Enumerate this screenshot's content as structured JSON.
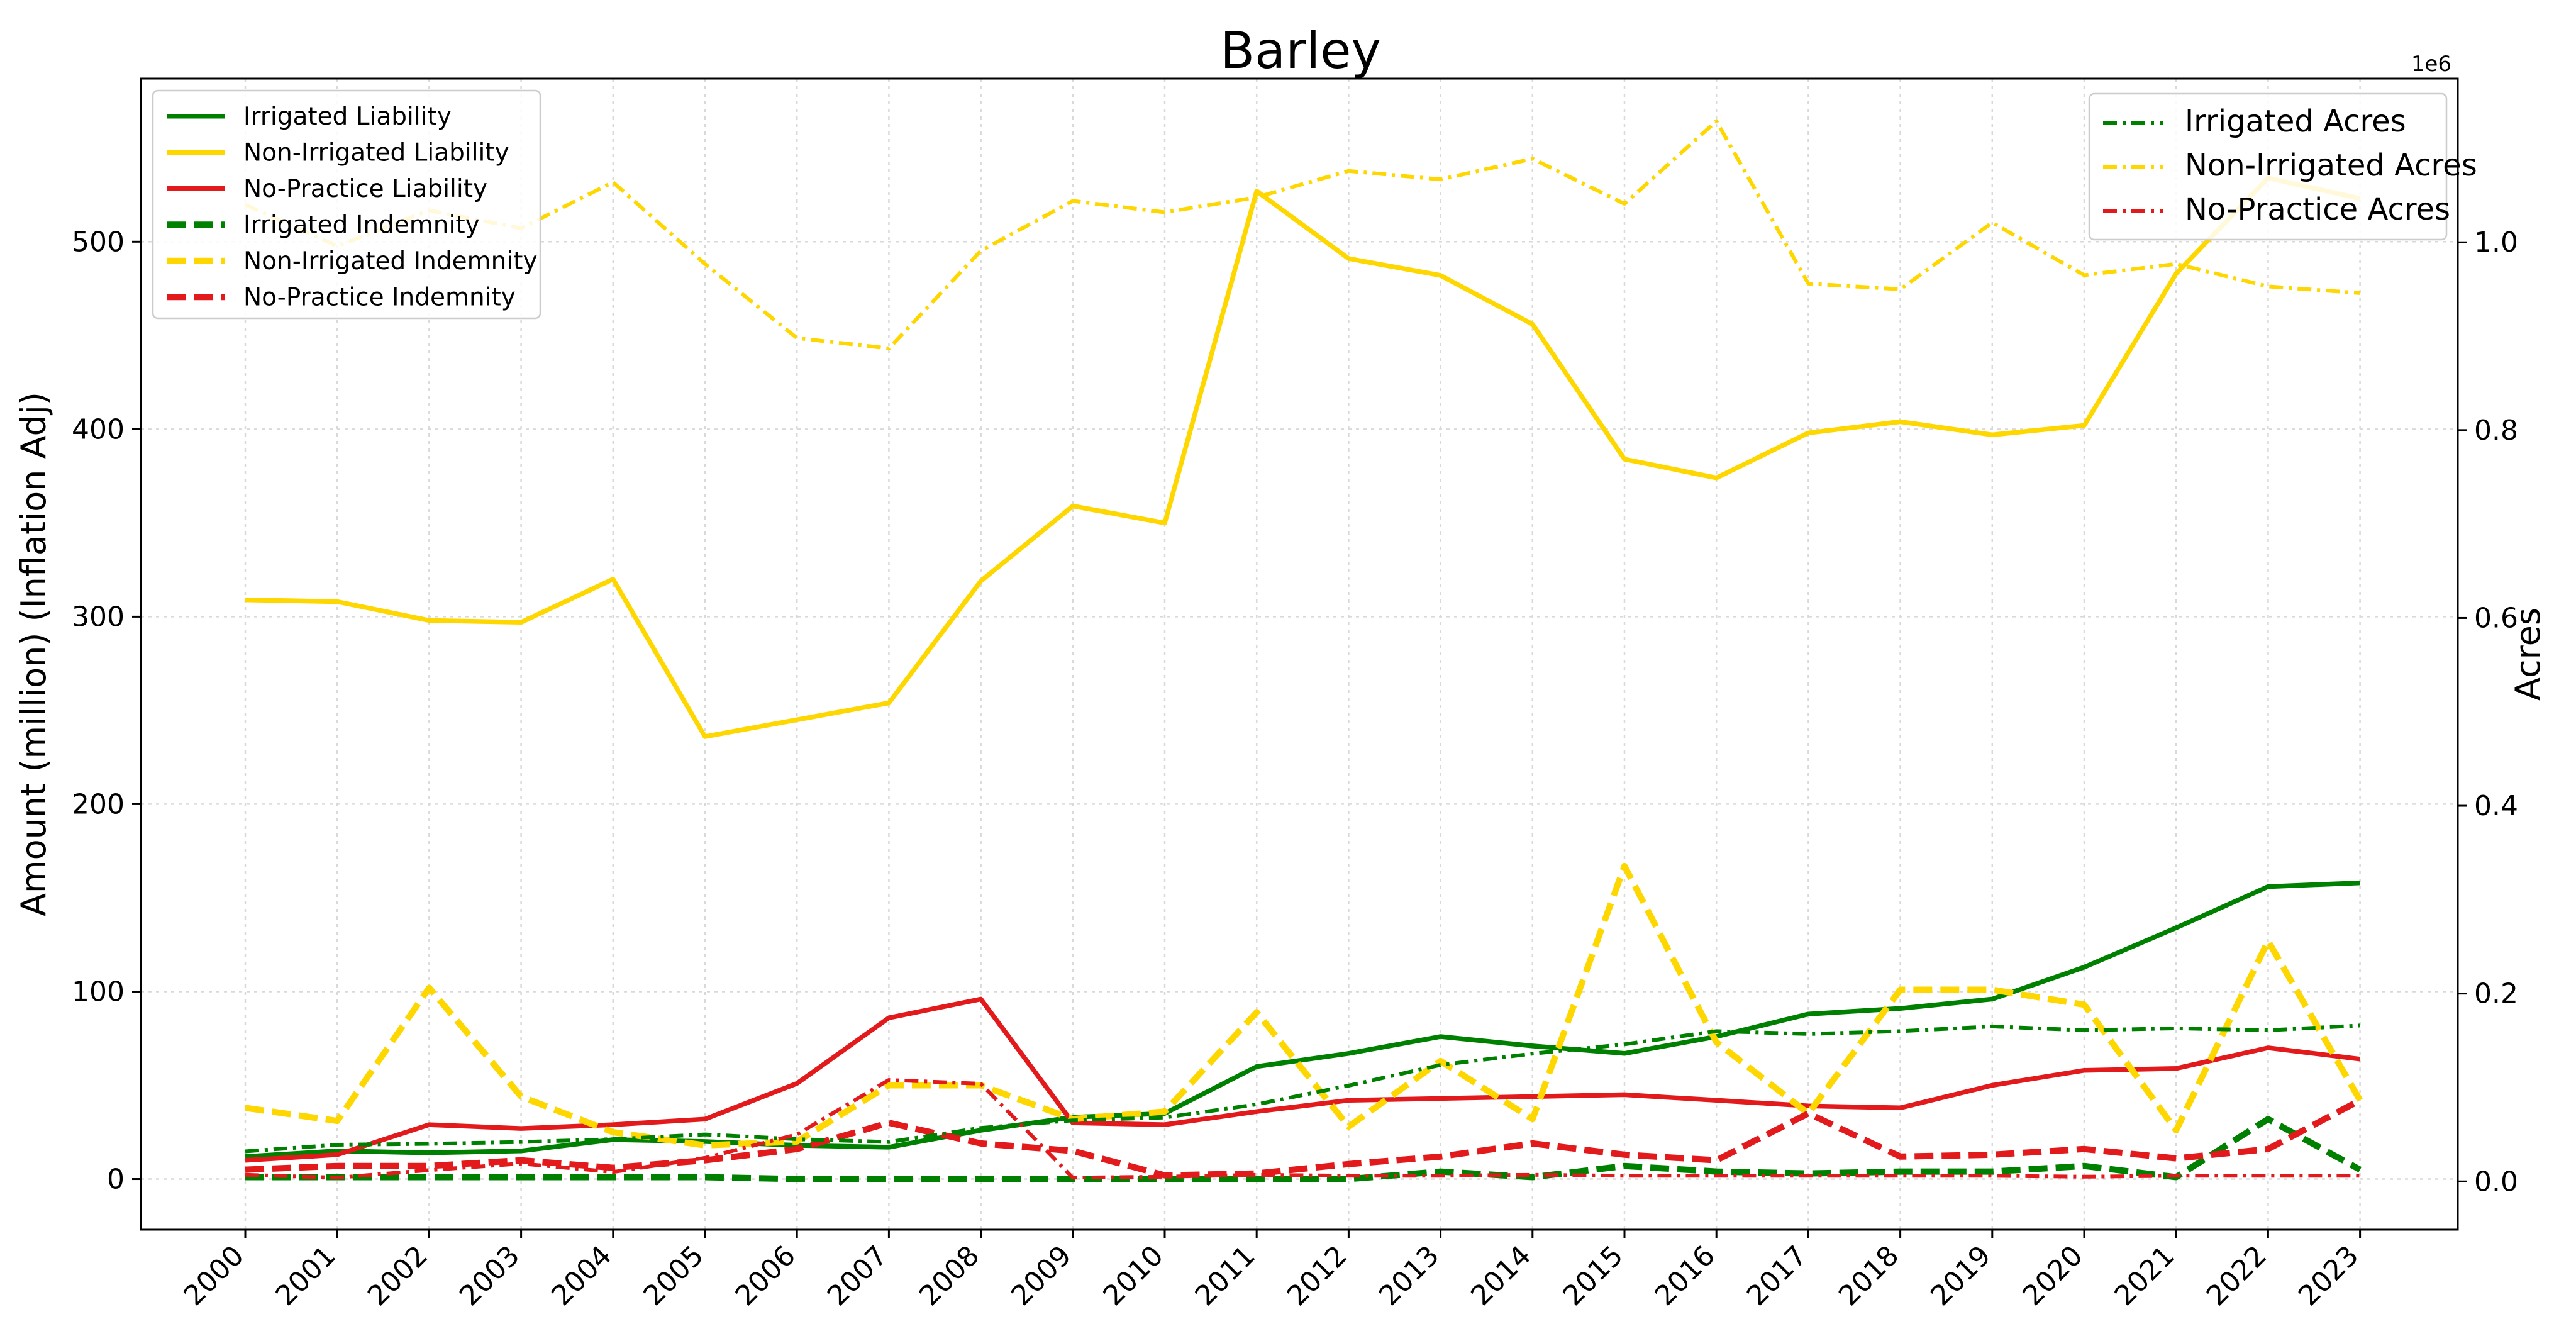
{
  "chart_data": {
    "type": "line",
    "title": "Barley",
    "xlabel": "",
    "ylabel": "Amount (million) (Inflation Adj)",
    "y2label": "Acres",
    "y2_offset_label": "1e6",
    "x": [
      "2000",
      "2001",
      "2002",
      "2003",
      "2004",
      "2005",
      "2006",
      "2007",
      "2008",
      "2009",
      "2010",
      "2011",
      "2012",
      "2013",
      "2014",
      "2015",
      "2016",
      "2017",
      "2018",
      "2019",
      "2020",
      "2021",
      "2022",
      "2023"
    ],
    "ylim": [
      -27,
      587
    ],
    "y2lim": [
      -0.0514,
      1.1743
    ],
    "yticks": [
      0,
      100,
      200,
      300,
      400,
      500
    ],
    "y2ticks": [
      0.0,
      0.2,
      0.4,
      0.6,
      0.8,
      1.0
    ],
    "y2tick_labels": [
      "0.0",
      "0.2",
      "0.4",
      "0.6",
      "0.8",
      "1.0"
    ],
    "grid": true,
    "legend_left_position": "upper-left",
    "legend_right_position": "upper-right",
    "series": [
      {
        "name": "Irrigated Liability",
        "axis": "left",
        "color": "#008000",
        "style": "solid",
        "values": [
          12,
          15,
          14,
          15,
          21,
          20,
          18,
          17,
          26,
          33,
          35,
          60,
          67,
          76,
          71,
          67,
          76,
          88,
          91,
          96,
          113,
          134,
          156,
          158
        ]
      },
      {
        "name": "Non-Irrigated Liability",
        "axis": "left",
        "color": "#FFD700",
        "style": "solid",
        "values": [
          309,
          308,
          298,
          297,
          320,
          236,
          245,
          254,
          319,
          359,
          350,
          527,
          491,
          482,
          456,
          384,
          374,
          398,
          404,
          397,
          402,
          483,
          534,
          523
        ]
      },
      {
        "name": "No-Practice Liability",
        "axis": "left",
        "color": "#E31A1C",
        "style": "solid",
        "values": [
          10,
          13,
          29,
          27,
          29,
          32,
          51,
          86,
          96,
          30,
          29,
          36,
          42,
          43,
          44,
          45,
          42,
          39,
          38,
          50,
          58,
          59,
          70,
          64
        ]
      },
      {
        "name": "Irrigated Indemnity",
        "axis": "left",
        "color": "#008000",
        "style": "dashed",
        "values": [
          1,
          1,
          1,
          1,
          1,
          1,
          0,
          0,
          0,
          0,
          0,
          0,
          0,
          4,
          1,
          7,
          4,
          3,
          4,
          4,
          7,
          1,
          32,
          5
        ]
      },
      {
        "name": "Non-Irrigated Indemnity",
        "axis": "left",
        "color": "#FFD700",
        "style": "dashed",
        "values": [
          38,
          31,
          102,
          44,
          25,
          18,
          20,
          50,
          50,
          32,
          36,
          89,
          28,
          63,
          32,
          167,
          73,
          35,
          101,
          101,
          93,
          26,
          127,
          42
        ]
      },
      {
        "name": "No-Practice Indemnity",
        "axis": "left",
        "color": "#E31A1C",
        "style": "dashed",
        "values": [
          5,
          7,
          7,
          10,
          6,
          10,
          16,
          30,
          19,
          15,
          2,
          3,
          8,
          12,
          19,
          13,
          10,
          35,
          12,
          13,
          16,
          11,
          16,
          42
        ]
      },
      {
        "name": "Irrigated Acres",
        "axis": "right",
        "color": "#008000",
        "style": "dashdot",
        "values": [
          0.032,
          0.039,
          0.04,
          0.042,
          0.045,
          0.05,
          0.045,
          0.042,
          0.057,
          0.065,
          0.068,
          0.082,
          0.102,
          0.124,
          0.136,
          0.146,
          0.16,
          0.157,
          0.16,
          0.165,
          0.161,
          0.163,
          0.161,
          0.166
        ]
      },
      {
        "name": "Non-Irrigated Acres",
        "axis": "right",
        "color": "#FFD700",
        "style": "dashdot",
        "values": [
          1.04,
          0.996,
          1.034,
          1.015,
          1.064,
          0.977,
          0.898,
          0.887,
          0.991,
          1.044,
          1.032,
          1.048,
          1.076,
          1.067,
          1.089,
          1.041,
          1.129,
          0.956,
          0.95,
          1.021,
          0.965,
          0.977,
          0.953,
          0.946
        ]
      },
      {
        "name": "No-Practice Acres",
        "axis": "right",
        "color": "#E31A1C",
        "style": "dashdot",
        "values": [
          0.007,
          0.004,
          0.012,
          0.019,
          0.01,
          0.025,
          0.05,
          0.108,
          0.104,
          0.004,
          0.005,
          0.007,
          0.006,
          0.006,
          0.007,
          0.006,
          0.006,
          0.006,
          0.006,
          0.006,
          0.005,
          0.006,
          0.006,
          0.006
        ]
      }
    ]
  }
}
